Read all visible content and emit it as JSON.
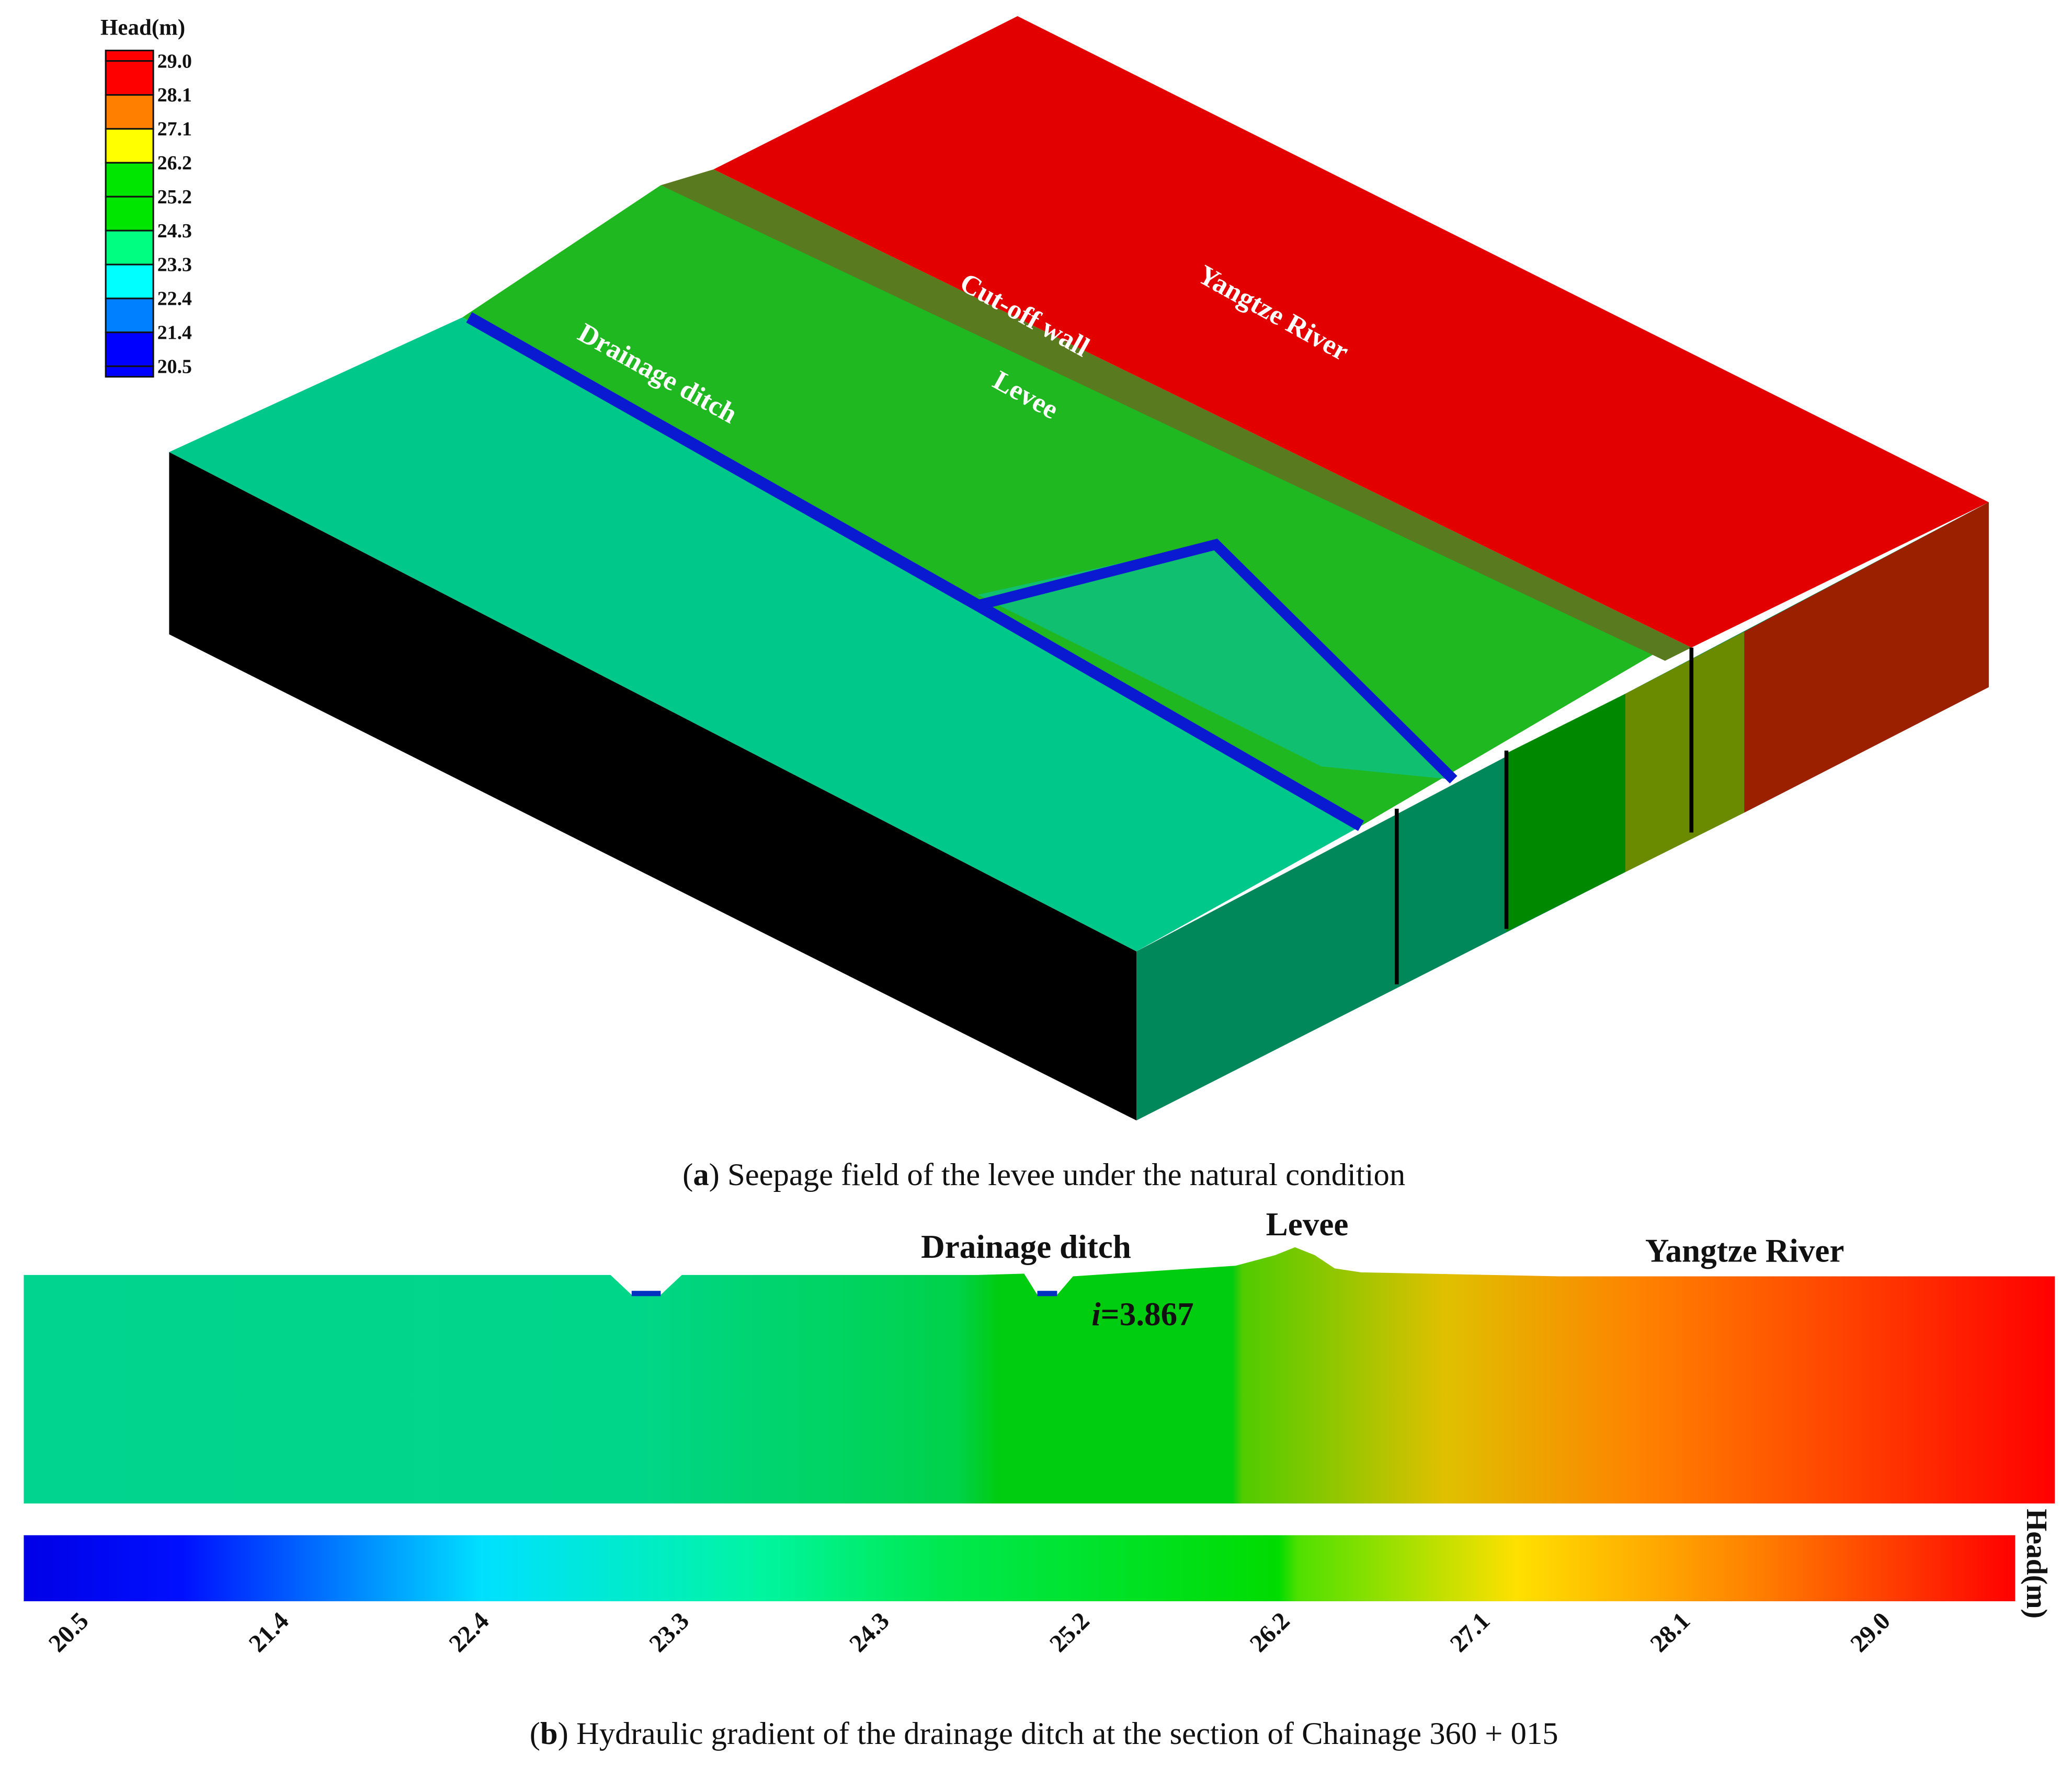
{
  "legend": {
    "title": "Head(m)",
    "levels": [
      "29.0",
      "28.1",
      "27.1",
      "26.2",
      "25.2",
      "24.3",
      "23.3",
      "22.4",
      "21.4",
      "20.5"
    ],
    "colors": [
      "#ff0000",
      "#ff0000",
      "#ff8000",
      "#ffff00",
      "#00e600",
      "#00e600",
      "#00ff80",
      "#00ffff",
      "#0080ff",
      "#0000ff",
      "#0000ff"
    ]
  },
  "panel_a": {
    "labels": {
      "river": "Yangtze River",
      "wall": "Cut-off  wall",
      "levee": "Levee",
      "ditch": "Drainage ditch"
    },
    "caption_letter": "a",
    "caption_text": " Seepage field of the levee under the natural condition"
  },
  "panel_b": {
    "labels": {
      "ditch": "Drainage ditch",
      "levee": "Levee",
      "river": "Yangtze River",
      "gradient_i": "i",
      "gradient_value": "=3.867"
    },
    "colorbar_title": "Head(m)",
    "colorbar_ticks": [
      "20.5",
      "21.4",
      "22.4",
      "23.3",
      "24.3",
      "25.2",
      "26.2",
      "27.1",
      "28.1",
      "29.0"
    ],
    "caption_letter": "b",
    "caption_text": " Hydraulic gradient of the drainage ditch at the section of Chainage 360 + 015"
  },
  "colors": {
    "teal": "#00c88a",
    "levee_green": "#1fc01f",
    "river_red": "#e60000",
    "side_black": "#000000"
  }
}
